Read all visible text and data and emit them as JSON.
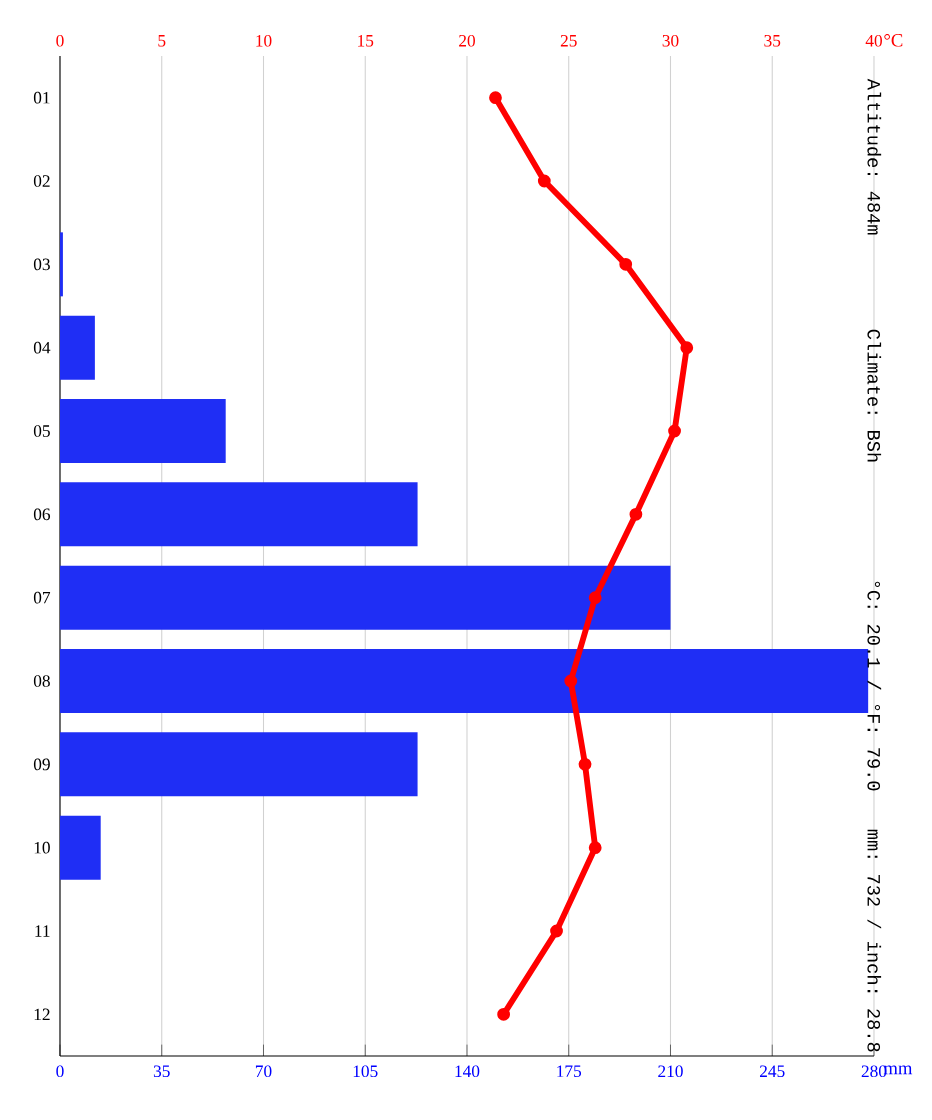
{
  "chart_data": {
    "type": "bar",
    "orientation": "horizontal",
    "categories": [
      "01",
      "02",
      "03",
      "04",
      "05",
      "06",
      "07",
      "08",
      "09",
      "10",
      "11",
      "12"
    ],
    "series": [
      {
        "color": "#1f2ef5",
        "values": [
          0,
          0,
          1,
          12,
          57,
          123,
          210,
          278,
          123,
          14,
          0,
          0
        ]
      },
      {
        "type": "line",
        "axis": "x2",
        "color": "#ff0000",
        "marker": "circle",
        "line_style": "solid",
        "values": [
          21.4,
          23.8,
          27.8,
          30.8,
          30.2,
          28.3,
          26.3,
          25.1,
          25.8,
          26.3,
          24.4,
          21.8
        ]
      }
    ],
    "xlabel": "mm",
    "x2label": "°C",
    "xlim": [
      0,
      280
    ],
    "xticks": [
      0,
      35,
      70,
      105,
      140,
      175,
      210,
      245,
      280
    ],
    "x2lim": [
      0,
      40
    ],
    "x2ticks": [
      0,
      5,
      10,
      15,
      20,
      25,
      30,
      35,
      40
    ],
    "grid": "x",
    "annotations": [
      "Altitude: 484m",
      "Climate: BSh",
      "°C: 20.1 / °F: 79.0",
      "mm: 732 / inch: 28.8"
    ]
  }
}
